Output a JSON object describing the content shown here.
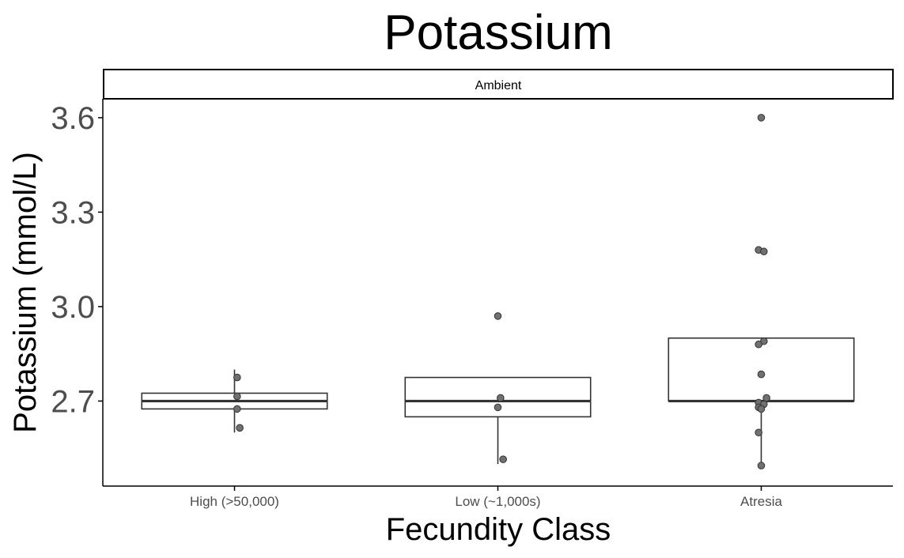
{
  "chart_data": {
    "type": "box",
    "title": "Potassium",
    "facet_label": "Ambient",
    "xlabel": "Fecundity Class",
    "ylabel": "Potassium (mmol/L)",
    "categories": [
      "High (>50,000)",
      "Low (~1,000s)",
      "Atresia"
    ],
    "ylim": [
      2.43,
      3.66
    ],
    "yticks": [
      2.7,
      3.0,
      3.3,
      3.6
    ],
    "ytick_labels": [
      "2.7",
      "3.0",
      "3.3",
      "3.6"
    ],
    "grid": false,
    "legend": "none",
    "boxes": [
      {
        "category": "High (>50,000)",
        "lower_whisker": 2.6,
        "q1": 2.675,
        "median": 2.7,
        "q3": 2.725,
        "upper_whisker": 2.8
      },
      {
        "category": "Low (~1,000s)",
        "lower_whisker": 2.5,
        "q1": 2.65,
        "median": 2.7,
        "q3": 2.775,
        "upper_whisker": 2.775
      },
      {
        "category": "Atresia",
        "lower_whisker": 2.5,
        "q1": 2.7,
        "median": 2.7,
        "q3": 2.9,
        "upper_whisker": 2.9
      }
    ],
    "points": [
      {
        "category": "High (>50,000)",
        "jitter": 0.01,
        "y": 2.775
      },
      {
        "category": "High (>50,000)",
        "jitter": 0.01,
        "y": 2.715
      },
      {
        "category": "High (>50,000)",
        "jitter": 0.01,
        "y": 2.675
      },
      {
        "category": "High (>50,000)",
        "jitter": 0.02,
        "y": 2.615
      },
      {
        "category": "Low (~1,000s)",
        "jitter": 0.0,
        "y": 2.97
      },
      {
        "category": "Low (~1,000s)",
        "jitter": 0.01,
        "y": 2.71
      },
      {
        "category": "Low (~1,000s)",
        "jitter": 0.0,
        "y": 2.68
      },
      {
        "category": "Low (~1,000s)",
        "jitter": 0.02,
        "y": 2.515
      },
      {
        "category": "Atresia",
        "jitter": 0.0,
        "y": 3.6
      },
      {
        "category": "Atresia",
        "jitter": -0.01,
        "y": 3.18
      },
      {
        "category": "Atresia",
        "jitter": 0.01,
        "y": 3.175
      },
      {
        "category": "Atresia",
        "jitter": 0.01,
        "y": 2.89
      },
      {
        "category": "Atresia",
        "jitter": -0.01,
        "y": 2.88
      },
      {
        "category": "Atresia",
        "jitter": 0.0,
        "y": 2.785
      },
      {
        "category": "Atresia",
        "jitter": 0.02,
        "y": 2.71
      },
      {
        "category": "Atresia",
        "jitter": -0.01,
        "y": 2.695
      },
      {
        "category": "Atresia",
        "jitter": 0.01,
        "y": 2.69
      },
      {
        "category": "Atresia",
        "jitter": -0.01,
        "y": 2.68
      },
      {
        "category": "Atresia",
        "jitter": 0.0,
        "y": 2.675
      },
      {
        "category": "Atresia",
        "jitter": -0.01,
        "y": 2.6
      },
      {
        "category": "Atresia",
        "jitter": 0.0,
        "y": 2.495
      }
    ],
    "colors": {
      "box_outline": "#333333",
      "point_fill": "#707070",
      "point_outline": "#333333",
      "axis": "#000000",
      "tick_text": "#4d4d4d",
      "strip_border": "#000000"
    }
  }
}
